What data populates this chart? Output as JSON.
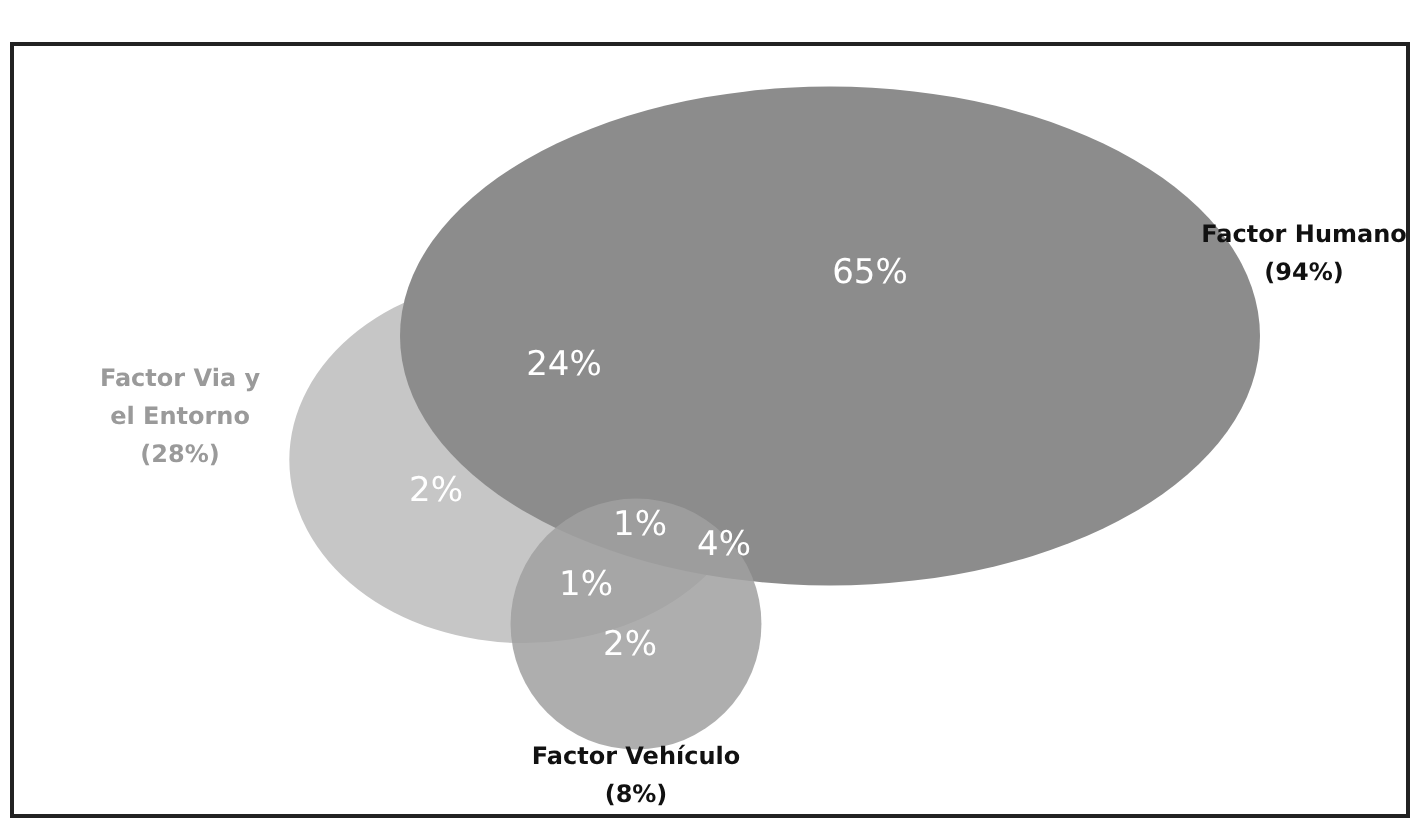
{
  "chart_data": {
    "type": "other",
    "categories": [
      "Factor Humano",
      "Factor Via y el Entorno",
      "Factor Vehículo"
    ],
    "values": [
      94,
      28,
      8
    ],
    "value_labels": [
      "(94%)",
      "(28%)",
      "(8%)"
    ],
    "colors": [
      "#8c8c8c",
      "#c6c6c6",
      "#a0a0a0"
    ],
    "annotations": [
      "65%",
      "24%",
      "2%",
      "1%",
      "4%",
      "1%",
      "2%"
    ]
  }
}
